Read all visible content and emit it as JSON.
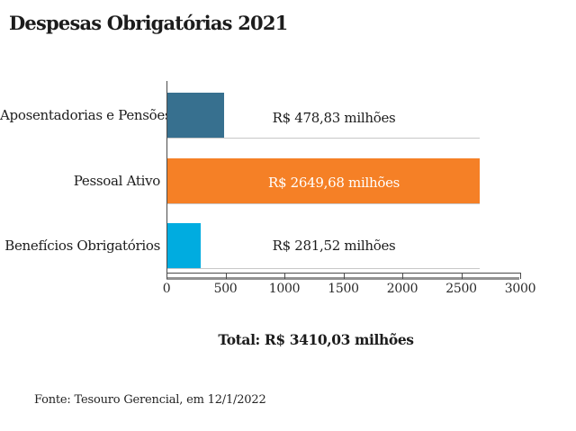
{
  "title": "Despesas Obrigatórias 2021",
  "chart_data": {
    "type": "bar",
    "orientation": "horizontal",
    "title": "Despesas Obrigatórias 2021",
    "categories": [
      "Aposentadorias e Pensões",
      "Pessoal Ativo",
      "Benefícios Obrigatórios"
    ],
    "values": [
      478.83,
      2649.68,
      281.52
    ],
    "value_labels": [
      "R$ 478,83 milhões",
      "R$ 2649,68 milhões",
      "R$ 281,52 milhões"
    ],
    "bar_colors": [
      "#37708f",
      "#f58026",
      "#00ace0"
    ],
    "xlim": [
      0,
      3000
    ],
    "x_ticks": [
      "0",
      "500",
      "1000",
      "1500",
      "2000",
      "2500",
      "3000"
    ],
    "xlabel": "",
    "ylabel": "",
    "legend": "none",
    "grid": "row-baselines",
    "total_label": "Total: R$ 3410,03 milhões",
    "source": "Fonte: Tesouro Gerencial, em 12/1/2022"
  },
  "colors": {
    "background": "#ffffff",
    "text": "#1c1c1c",
    "axis_line": "#4b4b4b",
    "axis_band": "#919191",
    "row_line": "#c8c8c8",
    "value_inside_bar": "#ffffff"
  }
}
